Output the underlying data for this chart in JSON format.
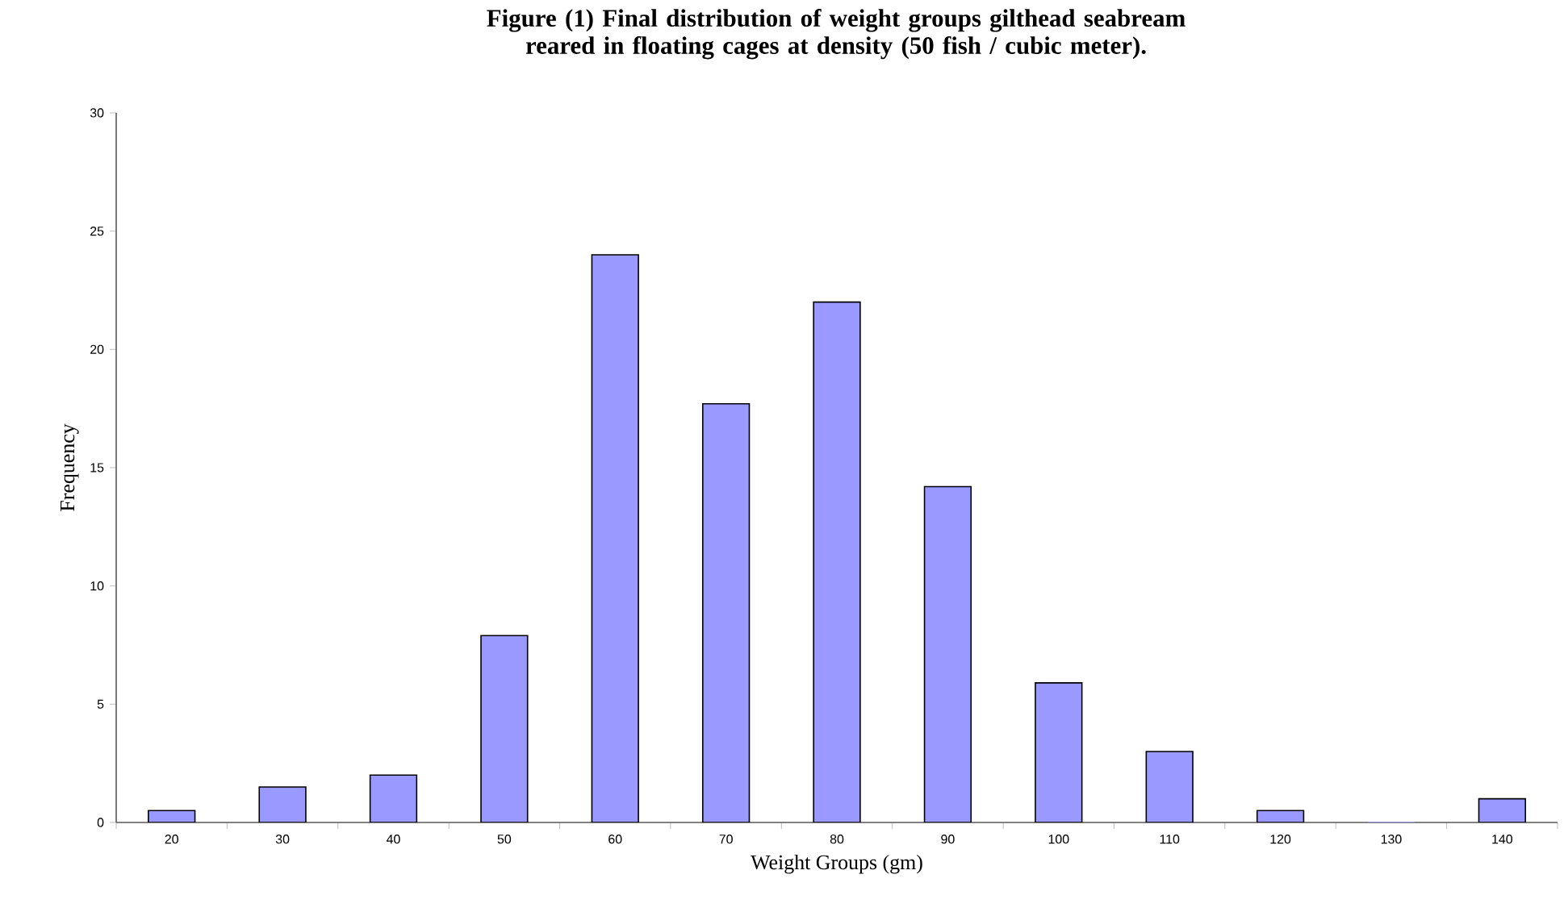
{
  "chart_data": {
    "type": "bar",
    "title": "Figure (1) Final distribution of weight groups gilthead seabream reared in floating cages at density (50 fish / cubic meter).",
    "xlabel": "Weight Groups (gm)",
    "ylabel": "Frequency",
    "categories": [
      "20",
      "30",
      "40",
      "50",
      "60",
      "70",
      "80",
      "90",
      "100",
      "110",
      "120",
      "130",
      "140"
    ],
    "values": [
      0.5,
      1.5,
      2,
      7.9,
      24,
      17.7,
      22,
      14.2,
      5.9,
      3,
      0.5,
      0,
      1
    ],
    "color": "#9999ff",
    "ylim": [
      0,
      30
    ],
    "yticks": [
      0,
      5,
      10,
      15,
      20,
      25,
      30
    ],
    "grid": false
  }
}
